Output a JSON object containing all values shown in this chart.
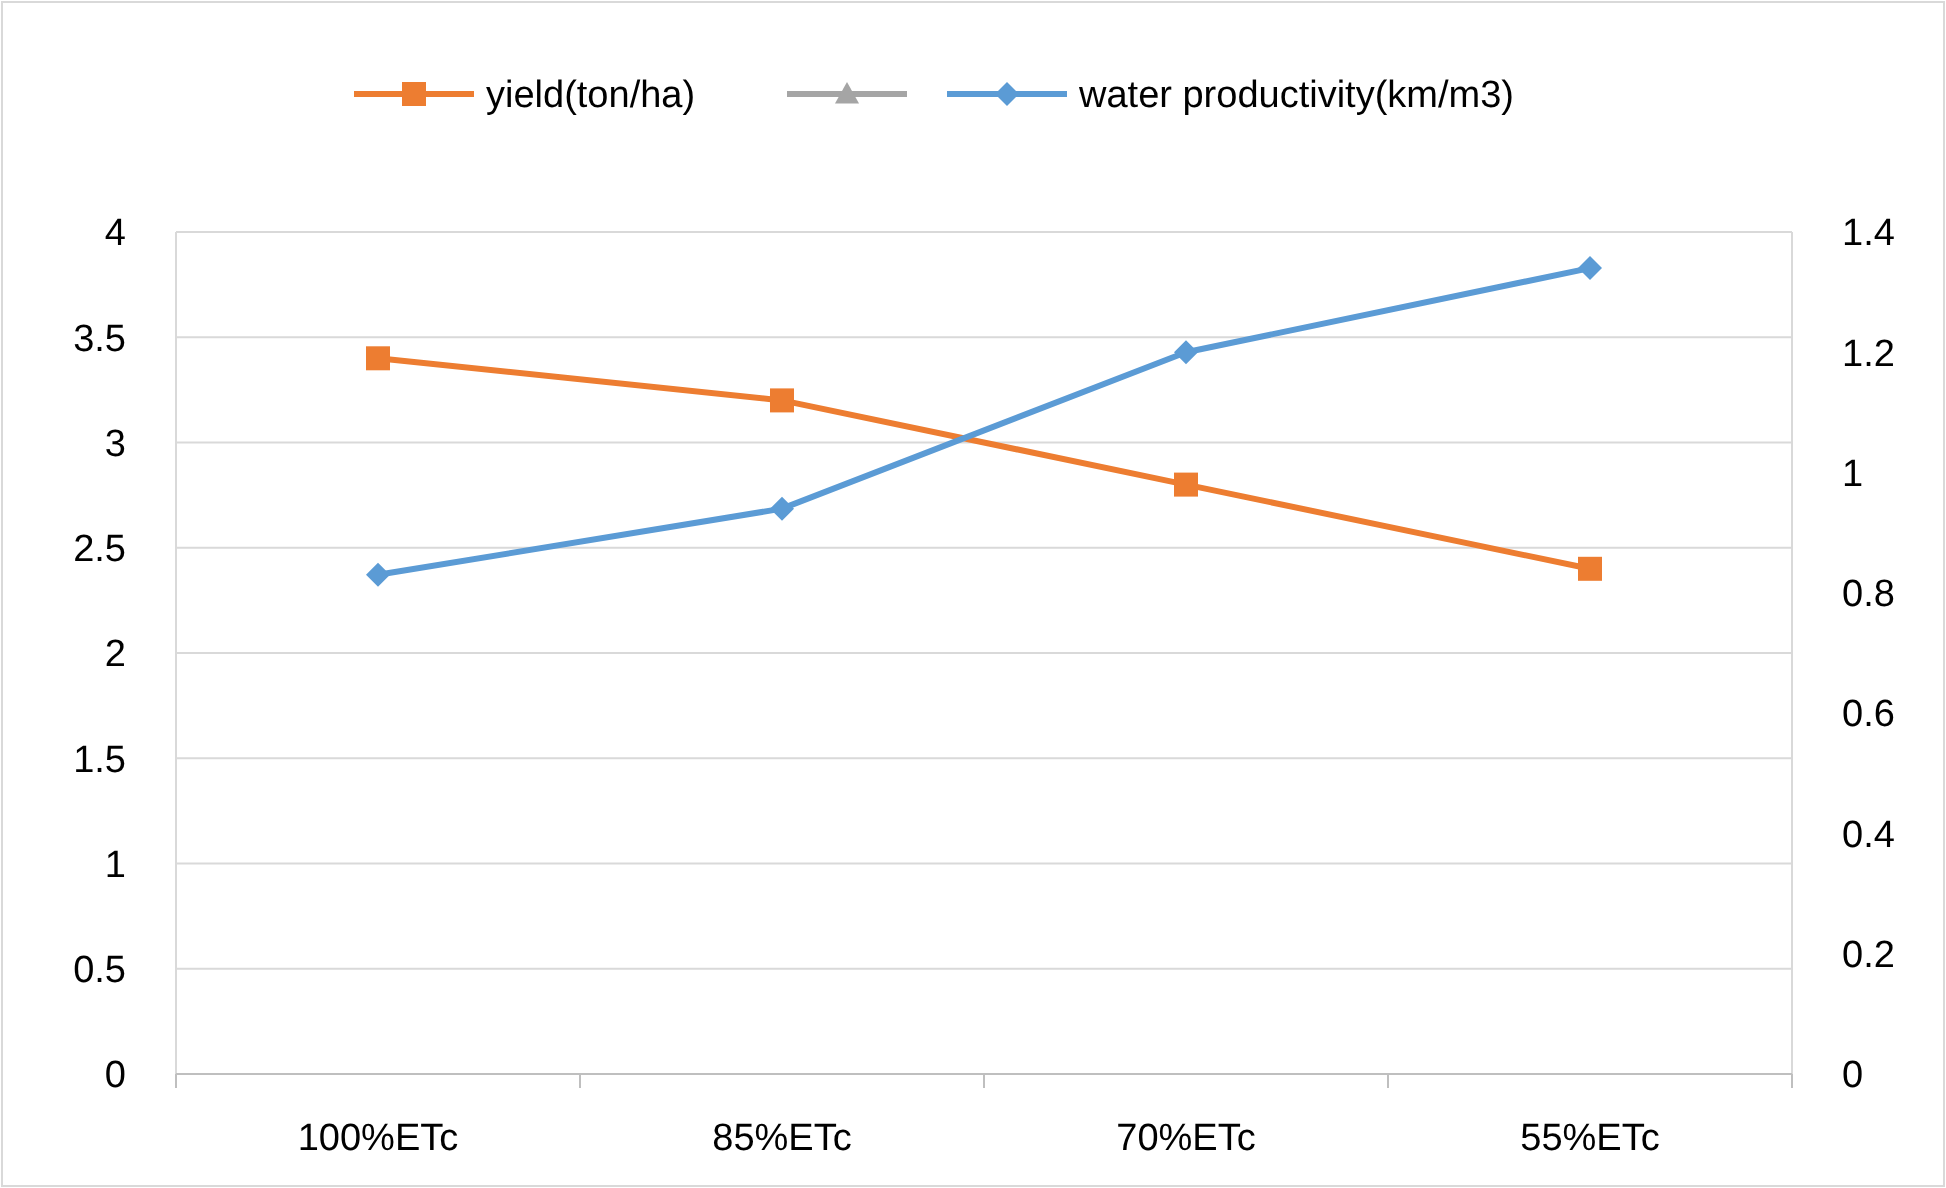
{
  "chart_data": {
    "type": "line",
    "categories": [
      "100%ETc",
      "85%ETc",
      "70%ETc",
      "55%ETc"
    ],
    "series": [
      {
        "name": "yield(ton/ha)",
        "color": "#ed7d31",
        "marker": "square",
        "values": [
          3.4,
          3.2,
          2.8,
          2.4
        ]
      },
      {
        "color": "#a5a5a5",
        "marker": "triangle",
        "values": [
          null,
          null,
          null,
          null
        ]
      },
      {
        "name": "water productivity(km/m3)",
        "color": "#5b9bd5",
        "marker": "diamond",
        "axis": "y2",
        "values": [
          0.83,
          0.94,
          1.2,
          1.34
        ]
      }
    ],
    "ylim": [
      0,
      4
    ],
    "yticks": [
      0,
      0.5,
      1,
      1.5,
      2,
      2.5,
      3,
      3.5,
      4
    ],
    "y2lim": [
      0,
      1.4
    ],
    "y2ticks": [
      0,
      0.2,
      0.4,
      0.6,
      0.8,
      1,
      1.2,
      1.4
    ],
    "grid": "y",
    "legend": "top"
  }
}
